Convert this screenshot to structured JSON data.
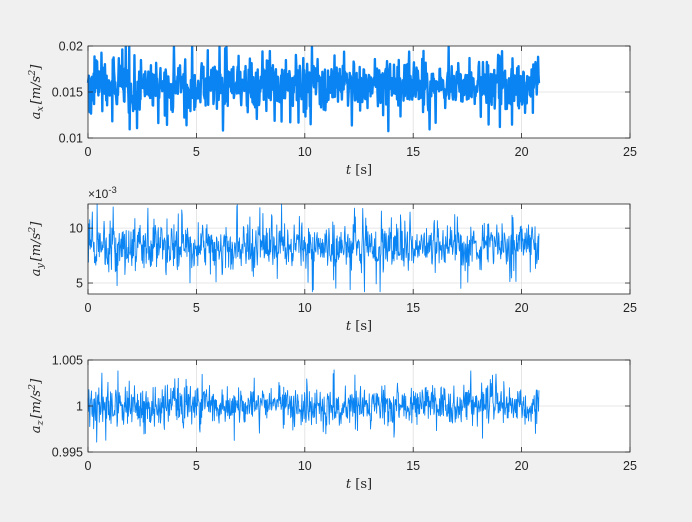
{
  "chart_data": [
    {
      "type": "line",
      "color": "#0b84f3",
      "line_weight": "thick",
      "xlim": [
        0,
        25
      ],
      "ylim": [
        0.01,
        0.02
      ],
      "xticks": [
        0,
        5,
        10,
        15,
        20,
        25
      ],
      "xtick_labels": [
        "0",
        "5",
        "10",
        "15",
        "20",
        "25"
      ],
      "yticks": [
        0.01,
        0.015,
        0.02
      ],
      "ytick_labels": [
        "0.01",
        "0.015",
        "0.02"
      ],
      "xlabel_var": "t",
      "xlabel_unit": "[s]",
      "ylabel_main": "a",
      "ylabel_sub": "x",
      "ylabel_unit": "[m/s",
      "ylabel_sup": "2",
      "ylabel_close": "]",
      "exponent_label": "",
      "grid": true,
      "series": [
        {
          "x_range": [
            0,
            20.8
          ],
          "samples": 1040,
          "mean": 0.0157,
          "amplitude": 0.0016,
          "min": 0.0107,
          "max": 0.0199
        }
      ]
    },
    {
      "type": "line",
      "color": "#0b84f3",
      "line_weight": "thin",
      "xlim": [
        0,
        25
      ],
      "ylim": [
        0.004,
        0.0122
      ],
      "xticks": [
        0,
        5,
        10,
        15,
        20,
        25
      ],
      "xtick_labels": [
        "0",
        "5",
        "10",
        "15",
        "20",
        "25"
      ],
      "yticks": [
        0.005,
        0.01
      ],
      "ytick_labels": [
        "5",
        "10"
      ],
      "xlabel_var": "t",
      "xlabel_unit": "[s]",
      "ylabel_main": "a",
      "ylabel_sub": "y",
      "ylabel_unit": "[m/s",
      "ylabel_sup": "2",
      "ylabel_close": "]",
      "exponent_label": "×10",
      "exponent_power": "-3",
      "grid": true,
      "series": [
        {
          "x_range": [
            0,
            20.8
          ],
          "samples": 1040,
          "mean": 0.0083,
          "amplitude": 0.0013,
          "min": 0.0042,
          "max": 0.0122
        }
      ]
    },
    {
      "type": "line",
      "color": "#0b84f3",
      "line_weight": "thin",
      "xlim": [
        0,
        25
      ],
      "ylim": [
        0.995,
        1.005
      ],
      "xticks": [
        0,
        5,
        10,
        15,
        20,
        25
      ],
      "xtick_labels": [
        "0",
        "5",
        "10",
        "15",
        "20",
        "25"
      ],
      "yticks": [
        0.995,
        1,
        1.005
      ],
      "ytick_labels": [
        "0.995",
        "1",
        "1.005"
      ],
      "xlabel_var": "t",
      "xlabel_unit": "[s]",
      "ylabel_main": "a",
      "ylabel_sub": "z",
      "ylabel_unit": "[m/s",
      "ylabel_sup": "2",
      "ylabel_close": "]",
      "exponent_label": "",
      "grid": true,
      "series": [
        {
          "x_range": [
            0,
            20.8
          ],
          "samples": 1040,
          "mean": 1.0,
          "amplitude": 0.0013,
          "min": 0.9958,
          "max": 1.004
        }
      ]
    }
  ]
}
